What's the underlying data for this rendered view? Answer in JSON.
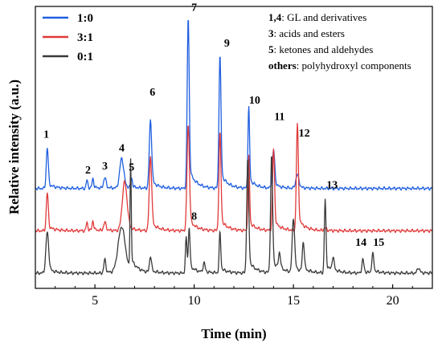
{
  "chart_data": {
    "type": "line",
    "xlabel": "Time (min)",
    "ylabel": "Relative intensity (a.u.)",
    "xlim": [
      2,
      22
    ],
    "x_ticks": [
      5,
      10,
      15,
      20
    ],
    "grid": false,
    "legend_position": "top-left",
    "series": [
      {
        "name": "1:0",
        "color": "#1f5fe0",
        "baseline": 0.62,
        "peaks": [
          {
            "x": 2.6,
            "h": 0.3,
            "w": 0.05
          },
          {
            "x": 4.6,
            "h": 0.06,
            "w": 0.04
          },
          {
            "x": 4.9,
            "h": 0.07,
            "w": 0.04
          },
          {
            "x": 5.5,
            "h": 0.08,
            "w": 0.06
          },
          {
            "x": 6.35,
            "h": 0.22,
            "w": 0.1
          },
          {
            "x": 6.85,
            "h": 0.07,
            "w": 0.04
          },
          {
            "x": 7.8,
            "h": 0.5,
            "w": 0.06
          },
          {
            "x": 9.7,
            "h": 1.26,
            "w": 0.05
          },
          {
            "x": 11.3,
            "h": 0.98,
            "w": 0.05
          },
          {
            "x": 12.75,
            "h": 0.6,
            "w": 0.04
          },
          {
            "x": 14.0,
            "h": 0.28,
            "w": 0.06
          },
          {
            "x": 15.2,
            "h": 0.1,
            "w": 0.08
          }
        ]
      },
      {
        "name": "3:1",
        "color": "#e03a3a",
        "baseline": 0.31,
        "peaks": [
          {
            "x": 2.6,
            "h": 0.28,
            "w": 0.05
          },
          {
            "x": 4.6,
            "h": 0.06,
            "w": 0.04
          },
          {
            "x": 4.9,
            "h": 0.07,
            "w": 0.04
          },
          {
            "x": 5.5,
            "h": 0.06,
            "w": 0.06
          },
          {
            "x": 6.5,
            "h": 0.36,
            "w": 0.12
          },
          {
            "x": 7.8,
            "h": 0.55,
            "w": 0.06
          },
          {
            "x": 9.7,
            "h": 0.78,
            "w": 0.06
          },
          {
            "x": 11.3,
            "h": 0.72,
            "w": 0.05
          },
          {
            "x": 12.75,
            "h": 0.55,
            "w": 0.04
          },
          {
            "x": 14.0,
            "h": 0.6,
            "w": 0.05
          },
          {
            "x": 15.2,
            "h": 0.78,
            "w": 0.05
          },
          {
            "x": 16.6,
            "h": 0.02,
            "w": 0.06
          }
        ]
      },
      {
        "name": "0:1",
        "color": "#3a3a3a",
        "baseline": 0.0,
        "peaks": [
          {
            "x": 2.6,
            "h": 0.3,
            "w": 0.07
          },
          {
            "x": 5.5,
            "h": 0.1,
            "w": 0.05
          },
          {
            "x": 6.35,
            "h": 0.34,
            "w": 0.18
          },
          {
            "x": 6.8,
            "h": 0.82,
            "w": 0.03
          },
          {
            "x": 7.8,
            "h": 0.12,
            "w": 0.05
          },
          {
            "x": 9.6,
            "h": 0.26,
            "w": 0.04
          },
          {
            "x": 9.75,
            "h": 0.32,
            "w": 0.04
          },
          {
            "x": 10.5,
            "h": 0.07,
            "w": 0.05
          },
          {
            "x": 11.3,
            "h": 0.3,
            "w": 0.04
          },
          {
            "x": 12.7,
            "h": 0.84,
            "w": 0.05
          },
          {
            "x": 13.9,
            "h": 0.86,
            "w": 0.05
          },
          {
            "x": 14.3,
            "h": 0.12,
            "w": 0.05
          },
          {
            "x": 15.0,
            "h": 0.4,
            "w": 0.06
          },
          {
            "x": 15.5,
            "h": 0.22,
            "w": 0.05
          },
          {
            "x": 16.6,
            "h": 0.54,
            "w": 0.04
          },
          {
            "x": 17.0,
            "h": 0.1,
            "w": 0.05
          },
          {
            "x": 18.5,
            "h": 0.1,
            "w": 0.05
          },
          {
            "x": 19.0,
            "h": 0.14,
            "w": 0.05
          },
          {
            "x": 21.3,
            "h": 0.04,
            "w": 0.06
          }
        ]
      }
    ],
    "peak_labels": [
      {
        "text": "1",
        "x": 2.55,
        "y": 0.99
      },
      {
        "text": "2",
        "x": 4.65,
        "y": 0.73
      },
      {
        "text": "3",
        "x": 5.5,
        "y": 0.76
      },
      {
        "text": "4",
        "x": 6.35,
        "y": 0.89
      },
      {
        "text": "5",
        "x": 6.85,
        "y": 0.75
      },
      {
        "text": "6",
        "x": 7.9,
        "y": 1.3
      },
      {
        "text": "7",
        "x": 10.0,
        "y": 1.92
      },
      {
        "text": "8",
        "x": 10.0,
        "y": 0.39
      },
      {
        "text": "9",
        "x": 11.65,
        "y": 1.66
      },
      {
        "text": "10",
        "x": 13.05,
        "y": 1.24
      },
      {
        "text": "11",
        "x": 14.3,
        "y": 1.12
      },
      {
        "text": "12",
        "x": 15.55,
        "y": 1.0
      },
      {
        "text": "13",
        "x": 16.95,
        "y": 0.62
      },
      {
        "text": "14",
        "x": 18.4,
        "y": 0.2
      },
      {
        "text": "15",
        "x": 19.3,
        "y": 0.2
      }
    ],
    "annotations": [
      {
        "bold": "1,4",
        "text": ": GL and derivatives"
      },
      {
        "bold": "3",
        "text": ": acids and esters"
      },
      {
        "bold": "5",
        "text": ": ketones and aldehydes"
      },
      {
        "bold": "others",
        "text": ": polyhydroxyl components"
      }
    ]
  }
}
